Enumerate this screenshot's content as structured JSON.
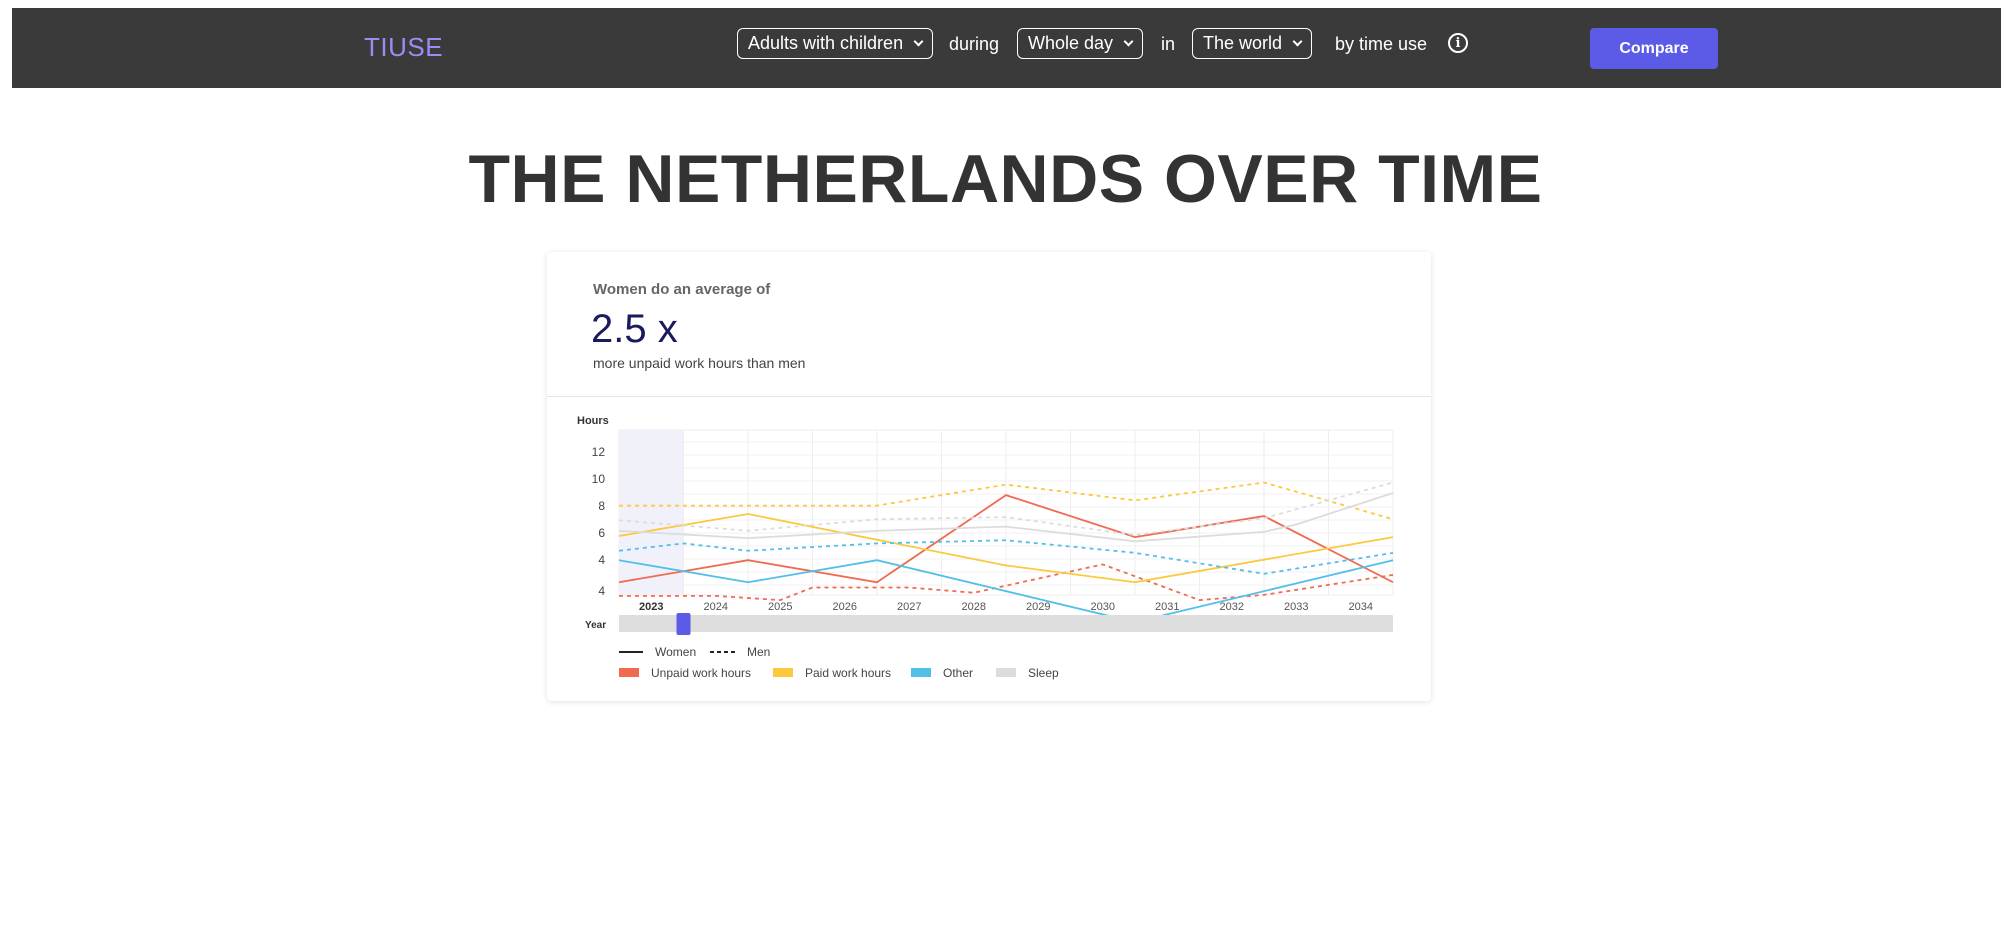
{
  "header": {
    "logo": "TIUSE",
    "group_select": "Adults with children",
    "during_word": "during",
    "period_select": "Whole day",
    "in_word": "in",
    "region_select": "The world",
    "by_word": "by time use",
    "compare_label": "Compare"
  },
  "page": {
    "title": "THE NETHERLANDS OVER TIME"
  },
  "stat": {
    "label": "Women do an average of",
    "value": "2.5 x",
    "sub": "more unpaid work hours than men"
  },
  "colors": {
    "unpaid": "#f06a50",
    "paid": "#fbc93d",
    "other": "#52bfe9",
    "sleep": "#dcdcdc",
    "accent": "#5b5be8"
  },
  "chart_data": {
    "type": "line",
    "ylabel": "Hours",
    "xlabel": "Year",
    "y_ticks": [
      "4",
      "4",
      "6",
      "8",
      "10",
      "12"
    ],
    "x": [
      "2023",
      "2024",
      "2025",
      "2026",
      "2027",
      "2028",
      "2029",
      "2030",
      "2031",
      "2032",
      "2033",
      "2034"
    ],
    "selected_year": "2023",
    "legend_styles": [
      "Women",
      "Men"
    ],
    "legend_categories": [
      "Unpaid work hours",
      "Paid work hours",
      "Other",
      "Sleep"
    ],
    "series": [
      {
        "name": "Unpaid work hours",
        "gender": "Women",
        "points": [
          [
            "2023",
            3.5
          ],
          [
            "2025",
            5.6
          ],
          [
            "2027",
            3.5
          ],
          [
            "2029",
            11.8
          ],
          [
            "2031",
            7.8
          ],
          [
            "2033",
            9.8
          ],
          [
            "2035",
            3.5
          ]
        ]
      },
      {
        "name": "Unpaid work hours",
        "gender": "Men",
        "points": [
          [
            "2023",
            2.2
          ],
          [
            "2024.5",
            2.2
          ],
          [
            "2025.5",
            1.8
          ],
          [
            "2026",
            3
          ],
          [
            "2027.5",
            3
          ],
          [
            "2028.5",
            2.5
          ],
          [
            "2030.5",
            5.2
          ],
          [
            "2032",
            1.8
          ],
          [
            "2033",
            2.3
          ],
          [
            "2035",
            4.2
          ]
        ]
      },
      {
        "name": "Paid work hours",
        "gender": "Women",
        "points": [
          [
            "2023",
            7.9
          ],
          [
            "2025",
            10.0
          ],
          [
            "2029",
            5.1
          ],
          [
            "2031",
            3.5
          ],
          [
            "2035",
            7.8
          ]
        ]
      },
      {
        "name": "Paid work hours",
        "gender": "Men",
        "points": [
          [
            "2023",
            10.8
          ],
          [
            "2027",
            10.8
          ],
          [
            "2029",
            12.8
          ],
          [
            "2031",
            11.3
          ],
          [
            "2033",
            13.0
          ],
          [
            "2035",
            9.5
          ]
        ]
      },
      {
        "name": "Other",
        "gender": "Women",
        "points": [
          [
            "2023",
            5.6
          ],
          [
            "2025",
            3.5
          ],
          [
            "2027",
            5.6
          ],
          [
            "2031",
            -0.3
          ],
          [
            "2035",
            5.6
          ]
        ]
      },
      {
        "name": "Other",
        "gender": "Men",
        "points": [
          [
            "2023",
            6.5
          ],
          [
            "2024",
            7.2
          ],
          [
            "2025",
            6.5
          ],
          [
            "2027",
            7.2
          ],
          [
            "2029",
            7.5
          ],
          [
            "2031",
            6.3
          ],
          [
            "2033",
            4.3
          ],
          [
            "2035",
            6.3
          ]
        ]
      },
      {
        "name": "Sleep",
        "gender": "Women",
        "points": [
          [
            "2023",
            8.4
          ],
          [
            "2025",
            7.7
          ],
          [
            "2027",
            8.4
          ],
          [
            "2029",
            8.8
          ],
          [
            "2031",
            7.4
          ],
          [
            "2033",
            8.3
          ],
          [
            "2033.5",
            9.0
          ],
          [
            "2035",
            12.0
          ]
        ]
      },
      {
        "name": "Sleep",
        "gender": "Men",
        "points": [
          [
            "2023",
            9.4
          ],
          [
            "2025",
            8.4
          ],
          [
            "2027",
            9.5
          ],
          [
            "2029",
            9.7
          ],
          [
            "2031",
            8.0
          ],
          [
            "2033",
            9.6
          ],
          [
            "2035",
            13.0
          ]
        ]
      }
    ]
  }
}
